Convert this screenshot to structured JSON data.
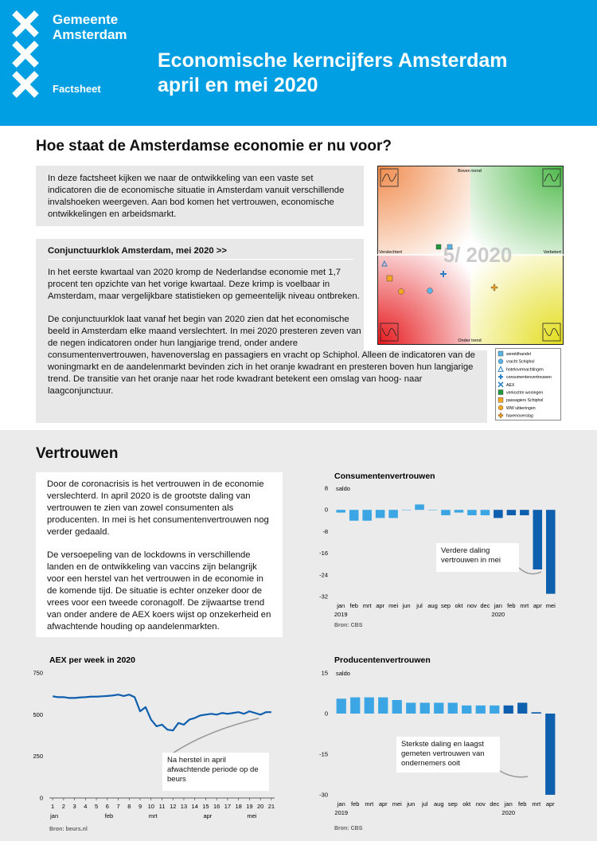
{
  "header": {
    "org": [
      "Gemeente",
      "Amsterdam"
    ],
    "label": "Factsheet",
    "title": [
      "Economische kerncijfers Amsterdam",
      "april en mei 2020"
    ]
  },
  "section1": {
    "heading": "Hoe staat de Amsterdamse economie er nu voor?",
    "intro": "In deze factsheet kijken we naar de ontwikkeling van een vaste set indicatoren die de economische situatie in Amsterdam vanuit verschillende invalshoeken weergeven. Aan bod komen het vertrouwen, economische ontwikkelingen en  arbeidsmarkt.",
    "clock_box": {
      "title": "Conjunctuurklok Amsterdam, mei 2020 >>",
      "paragraphs": [
        "In het eerste kwartaal van 2020 kromp de Nederlandse economie met 1,7 procent ten opzichte van het vorige kwartaal. Deze krimp is voelbaar in Amsterdam, maar vergelijkbare statistieken op gemeentelijk niveau ontbreken.",
        "De conjunctuurklok laat vanaf het begin van 2020 zien dat het economische beeld in Amsterdam elke maand verslechtert. In mei 2020 presteren zeven van de negen indicatoren onder hun langjarige trend, onder andere consumentenvertrouwen, havenoverslag en passagiers en vracht op Schiphol. Alleen de indicatoren van de woningmarkt en de aandelenmarkt bevinden zich in het oranje kwadrant en presteren boven hun langjarige trend. De transitie van het oranje naar het rode kwadrant betekent een omslag van hoog- naar laagconjunctuur."
      ]
    },
    "clock": {
      "top": "Boven trend",
      "bottom": "Onder trend",
      "left": "Verslechtert",
      "right": "Verbetert",
      "watermark": "5/ 2020",
      "legend": [
        "wereldhandel",
        "vracht Schiphol",
        "hotelovernachtingen",
        "consumentenvertrouwen",
        "AEX",
        "verkochte woningen",
        "passagiers Schiphol",
        "WW uitkeringen",
        "havenoverslag"
      ]
    }
  },
  "section2": {
    "heading": "Vertrouwen",
    "paragraphs": [
      "Door de coronacrisis is het vertrouwen in de economie verslechterd. In april 2020 is de grootste daling van vertrouwen te zien van zowel consumenten als producenten. In mei is het consumentenvertrouwen nog verder gedaald.",
      "De versoepeling van de lockdowns in verschillende landen en de ontwikkeling van vaccins zijn belangrijk voor een herstel van het vertrouwen in de economie in de komende tijd. De situatie is echter onzeker door de vrees voor een tweede coronagolf. De zijwaartse trend van onder andere de AEX koers wijst op onzekerheid en afwachtende houding op aandelenmarkten."
    ]
  },
  "chart_data": [
    {
      "type": "bar",
      "title": "Consumentenvertrouwen",
      "y_label": "saldo",
      "categories": [
        "jan",
        "feb",
        "mrt",
        "apr",
        "mei",
        "jun",
        "jul",
        "aug",
        "sep",
        "okt",
        "nov",
        "dec",
        "jan",
        "feb",
        "mrt",
        "apr",
        "mei"
      ],
      "years": [
        "2019",
        null,
        null,
        null,
        null,
        null,
        null,
        null,
        null,
        null,
        null,
        null,
        "2020",
        null,
        null,
        null,
        null
      ],
      "values": [
        -1,
        -4,
        -4,
        -3,
        -3,
        0,
        2,
        0,
        -2,
        -1,
        -2,
        -2,
        -3,
        -2,
        -2,
        -22,
        -31
      ],
      "bar_colors": [
        "#3ba6e3",
        "#3ba6e3",
        "#3ba6e3",
        "#3ba6e3",
        "#3ba6e3",
        "#3ba6e3",
        "#3ba6e3",
        "#3ba6e3",
        "#3ba6e3",
        "#3ba6e3",
        "#3ba6e3",
        "#3ba6e3",
        "#0e5fae",
        "#0e5fae",
        "#0e5fae",
        "#0e5fae",
        "#0e5fae"
      ],
      "ylim": [
        -32,
        8
      ],
      "yticks": [
        8,
        0,
        -8,
        -16,
        -24,
        -32
      ],
      "annotation": "Verdere daling vertrouwen in mei",
      "source": "Bron: CBS"
    },
    {
      "type": "line",
      "title": "AEX per week in 2020",
      "x": [
        1,
        1.5,
        2,
        2.5,
        3,
        3.5,
        4,
        4.5,
        5,
        5.5,
        6,
        6.5,
        7,
        7.5,
        8,
        8.5,
        9,
        9.5,
        10,
        10.5,
        11,
        11.5,
        12,
        12.5,
        13,
        13.5,
        14,
        14.5,
        15,
        15.5,
        16,
        16.5,
        17,
        17.5,
        18,
        18.5,
        19,
        19.5,
        20,
        20.5,
        21
      ],
      "values": [
        610,
        605,
        605,
        600,
        600,
        603,
        605,
        608,
        608,
        610,
        612,
        615,
        620,
        612,
        620,
        605,
        520,
        545,
        470,
        430,
        440,
        410,
        405,
        450,
        440,
        470,
        480,
        495,
        500,
        505,
        500,
        510,
        505,
        510,
        515,
        505,
        520,
        510,
        500,
        515,
        515
      ],
      "color": "#0e5fae",
      "xlim": [
        0.7,
        21.3
      ],
      "xticks": [
        1,
        2,
        3,
        4,
        5,
        6,
        7,
        8,
        9,
        10,
        11,
        12,
        13,
        14,
        15,
        16,
        17,
        18,
        19,
        20,
        21
      ],
      "month_ticks": [
        {
          "value": 1,
          "label": "jan"
        },
        {
          "value": 6,
          "label": "feb"
        },
        {
          "value": 10,
          "label": "mrt"
        },
        {
          "value": 15,
          "label": "apr"
        },
        {
          "value": 19,
          "label": "mei"
        }
      ],
      "ylim": [
        0,
        750
      ],
      "yticks": [
        0,
        250,
        500,
        750
      ],
      "annotation": "Na herstel in april afwachtende periode op de beurs",
      "source": "Bron: beurs.nl"
    },
    {
      "type": "bar",
      "title": "Producentenvertrouwen",
      "y_label": "saldo",
      "categories": [
        "jan",
        "feb",
        "mrt",
        "apr",
        "mei",
        "jun",
        "jul",
        "aug",
        "sep",
        "okt",
        "nov",
        "dec",
        "jan",
        "feb",
        "mrt",
        "apr"
      ],
      "years": [
        "2019",
        null,
        null,
        null,
        null,
        null,
        null,
        null,
        null,
        null,
        null,
        null,
        "2020",
        null,
        null,
        null
      ],
      "values": [
        5.5,
        6,
        6,
        6,
        5,
        4,
        4,
        4,
        4,
        3,
        3,
        3,
        3,
        4,
        0.5,
        -30
      ],
      "bar_colors": [
        "#3ba6e3",
        "#3ba6e3",
        "#3ba6e3",
        "#3ba6e3",
        "#3ba6e3",
        "#3ba6e3",
        "#3ba6e3",
        "#3ba6e3",
        "#3ba6e3",
        "#3ba6e3",
        "#3ba6e3",
        "#3ba6e3",
        "#0e5fae",
        "#0e5fae",
        "#0e5fae",
        "#0e5fae"
      ],
      "ylim": [
        -30,
        15
      ],
      "yticks": [
        15,
        0,
        -15,
        -30
      ],
      "annotation": "Sterkste daling en laagst gemeten vertrouwen van ondernemers ooit",
      "source": "Bron: CBS"
    }
  ]
}
